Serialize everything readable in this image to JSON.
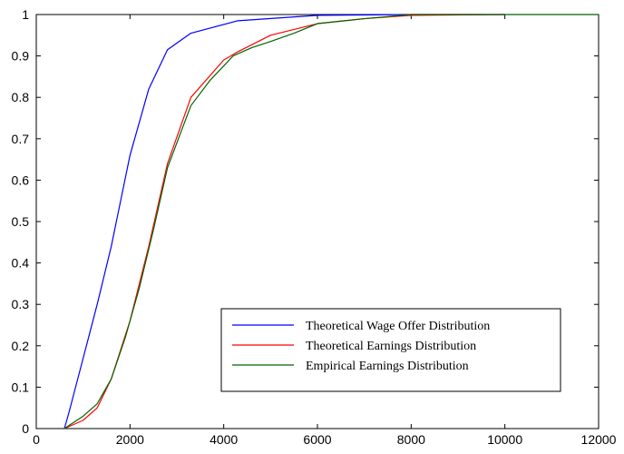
{
  "chart_data": {
    "type": "line",
    "title": "",
    "xlabel": "",
    "ylabel": "",
    "xlim": [
      0,
      12000
    ],
    "ylim": [
      0,
      1
    ],
    "xticks": [
      0,
      2000,
      4000,
      6000,
      8000,
      10000,
      12000
    ],
    "xtick_labels": [
      "0",
      "2000",
      "4000",
      "6000",
      "8000",
      "10000",
      "12000"
    ],
    "yticks": [
      0,
      0.1,
      0.2,
      0.3,
      0.4,
      0.5,
      0.6,
      0.7,
      0.8,
      0.9,
      1
    ],
    "ytick_labels": [
      "0",
      "0.1",
      "0.2",
      "0.3",
      "0.4",
      "0.5",
      "0.6",
      "0.7",
      "0.8",
      "0.9",
      "1"
    ],
    "grid": false,
    "legend_position": "bottom-right",
    "series": [
      {
        "name": "Theoretical Wage Offer Distribution",
        "color": "#0000ff",
        "x": [
          600,
          700,
          1000,
          1300,
          1600,
          2000,
          2400,
          2800,
          3300,
          4300,
          6000,
          8000,
          10000
        ],
        "y": [
          0,
          0.04,
          0.17,
          0.3,
          0.44,
          0.66,
          0.82,
          0.915,
          0.955,
          0.985,
          0.998,
          1.0,
          1.0
        ]
      },
      {
        "name": "Theoretical Earnings Distribution",
        "color": "#ff0000",
        "x": [
          600,
          1000,
          1300,
          1600,
          2000,
          2400,
          2800,
          3300,
          4000,
          4300,
          5000,
          6000,
          7000,
          8000,
          10000
        ],
        "y": [
          0,
          0.02,
          0.05,
          0.12,
          0.26,
          0.44,
          0.64,
          0.8,
          0.89,
          0.91,
          0.95,
          0.978,
          0.99,
          0.998,
          1.0
        ]
      },
      {
        "name": "Empirical Earnings Distribution",
        "color": "#006400",
        "x": [
          600,
          800,
          1000,
          1300,
          1600,
          1900,
          2200,
          2500,
          2800,
          3100,
          3300,
          3700,
          4200,
          4600,
          5000,
          5500,
          6000,
          7000,
          8000,
          12000
        ],
        "y": [
          0,
          0.015,
          0.03,
          0.06,
          0.12,
          0.22,
          0.34,
          0.48,
          0.63,
          0.72,
          0.78,
          0.84,
          0.9,
          0.92,
          0.935,
          0.955,
          0.978,
          0.99,
          1.0,
          1.0
        ]
      }
    ]
  }
}
